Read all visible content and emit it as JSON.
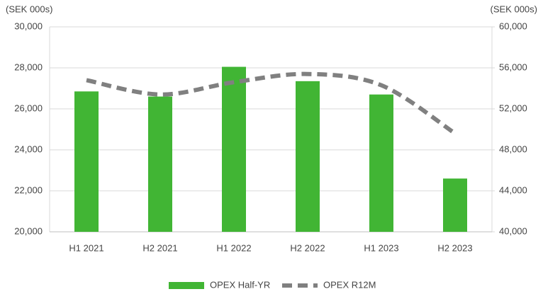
{
  "chart_data": {
    "type": "bar_line",
    "y_label": "(SEK 000s)",
    "y2_label": "(SEK 000s)",
    "categories": [
      "H1 2021",
      "H2 2021",
      "H1 2022",
      "H2 2022",
      "H1 2023",
      "H2 2023"
    ],
    "series": [
      {
        "name": "OPEX Half-YR",
        "type": "bar",
        "color": "#41b534",
        "values": [
          26850,
          26600,
          28050,
          27350,
          26700,
          22600
        ]
      },
      {
        "name": "OPEX R12M",
        "type": "line",
        "axis": "y2",
        "color": "#808080",
        "dashed": true,
        "values": [
          54800,
          53400,
          54600,
          55400,
          54300,
          49600
        ]
      }
    ],
    "ylim": [
      20000,
      30000
    ],
    "yticks": [
      {
        "value": 20000,
        "label": "20,000"
      },
      {
        "value": 22000,
        "label": "22,000"
      },
      {
        "value": 24000,
        "label": "24,000"
      },
      {
        "value": 26000,
        "label": "26,000"
      },
      {
        "value": 28000,
        "label": "28,000"
      },
      {
        "value": 30000,
        "label": "30,000"
      }
    ],
    "y2lim": [
      40000,
      60000
    ],
    "y2ticks": [
      {
        "value": 40000,
        "label": "40,000"
      },
      {
        "value": 44000,
        "label": "44,000"
      },
      {
        "value": 48000,
        "label": "48,000"
      },
      {
        "value": 52000,
        "label": "52,000"
      },
      {
        "value": 56000,
        "label": "56,000"
      },
      {
        "value": 60000,
        "label": "60,000"
      }
    ],
    "grid": true,
    "legend": "bottom"
  }
}
